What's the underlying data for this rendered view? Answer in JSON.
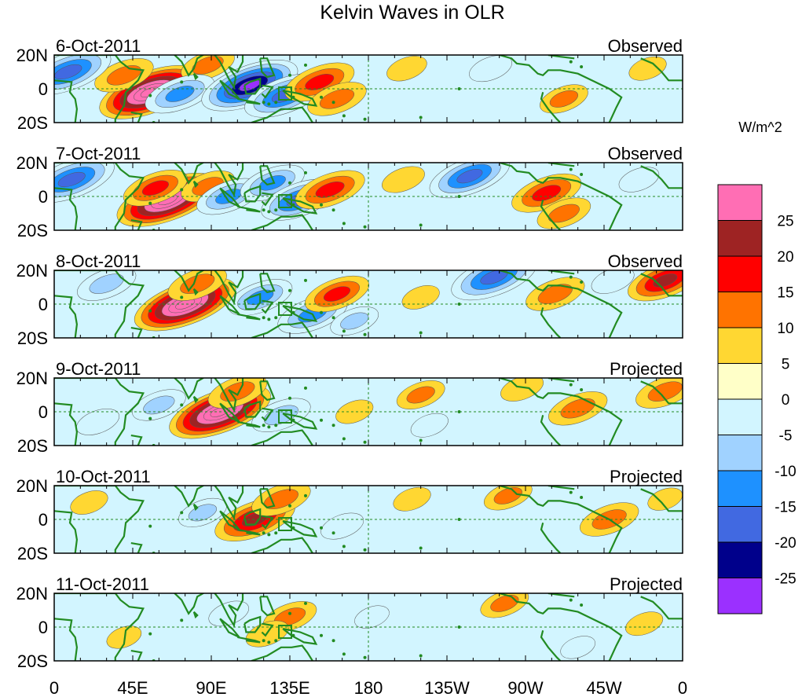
{
  "chart_data": {
    "type": "heatmap",
    "title": "Kelvin Waves in OLR",
    "units_label": "W/m^2",
    "y_tick_labels": [
      "20N",
      "0",
      "20S"
    ],
    "x_tick_labels": [
      "0",
      "45E",
      "90E",
      "135E",
      "180",
      "135W",
      "90W",
      "45W",
      "0"
    ],
    "x_range_deg": [
      0,
      360
    ],
    "y_range_deg": [
      -20,
      20
    ],
    "panels": [
      {
        "date": "6-Oct-2011",
        "kind": "Observed"
      },
      {
        "date": "7-Oct-2011",
        "kind": "Observed"
      },
      {
        "date": "8-Oct-2011",
        "kind": "Observed"
      },
      {
        "date": "9-Oct-2011",
        "kind": "Projected"
      },
      {
        "date": "10-Oct-2011",
        "kind": "Projected"
      },
      {
        "date": "11-Oct-2011",
        "kind": "Projected"
      }
    ],
    "colorbar": {
      "colors": [
        "#ff6eb4",
        "#9e2323",
        "#ff0000",
        "#ff7300",
        "#ffd732",
        "#ffffc8",
        "#d2f5ff",
        "#a0d2ff",
        "#1e91ff",
        "#4169e1",
        "#00008b",
        "#9b30ff"
      ],
      "labels": [
        "25",
        "20",
        "15",
        "10",
        "5",
        "0",
        "-5",
        "-10",
        "-15",
        "-20",
        "-25"
      ]
    },
    "features": [
      [
        {
          "lon": 55,
          "lat": -2,
          "v": 30
        },
        {
          "lon": 40,
          "lat": 8,
          "v": 14
        },
        {
          "lon": 88,
          "lat": 14,
          "v": 12
        },
        {
          "lon": 72,
          "lat": -3,
          "v": -18
        },
        {
          "lon": 100,
          "lat": 0,
          "v": -10
        },
        {
          "lon": 112,
          "lat": 2,
          "v": -28
        },
        {
          "lon": 132,
          "lat": -4,
          "v": -22
        },
        {
          "lon": 152,
          "lat": 4,
          "v": 18
        },
        {
          "lon": 162,
          "lat": -6,
          "v": 14
        },
        {
          "lon": 8,
          "lat": 10,
          "v": -24
        },
        {
          "lon": 202,
          "lat": 12,
          "v": 7
        },
        {
          "lon": 250,
          "lat": 12,
          "v": -8
        },
        {
          "lon": 292,
          "lat": -6,
          "v": 10
        },
        {
          "lon": 340,
          "lat": 12,
          "v": 6
        }
      ],
      [
        {
          "lon": 65,
          "lat": -2,
          "v": 30
        },
        {
          "lon": 58,
          "lat": 5,
          "v": 16
        },
        {
          "lon": 88,
          "lat": 6,
          "v": 12
        },
        {
          "lon": 100,
          "lat": 0,
          "v": -16
        },
        {
          "lon": 125,
          "lat": 8,
          "v": -16
        },
        {
          "lon": 140,
          "lat": -2,
          "v": -20
        },
        {
          "lon": 158,
          "lat": 4,
          "v": 18
        },
        {
          "lon": 10,
          "lat": 10,
          "v": -24
        },
        {
          "lon": 238,
          "lat": 12,
          "v": -22
        },
        {
          "lon": 200,
          "lat": 10,
          "v": 8
        },
        {
          "lon": 282,
          "lat": 2,
          "v": 18
        },
        {
          "lon": 292,
          "lat": -10,
          "v": 12
        },
        {
          "lon": 335,
          "lat": 10,
          "v": -7
        }
      ],
      [
        {
          "lon": 75,
          "lat": 0,
          "v": 30
        },
        {
          "lon": 82,
          "lat": 12,
          "v": 14
        },
        {
          "lon": 118,
          "lat": 4,
          "v": -16
        },
        {
          "lon": 148,
          "lat": -6,
          "v": -18
        },
        {
          "lon": 162,
          "lat": 6,
          "v": 16
        },
        {
          "lon": 30,
          "lat": 12,
          "v": -14
        },
        {
          "lon": 172,
          "lat": -10,
          "v": -10
        },
        {
          "lon": 252,
          "lat": 16,
          "v": -24
        },
        {
          "lon": 287,
          "lat": 6,
          "v": 14
        },
        {
          "lon": 350,
          "lat": 14,
          "v": 20
        },
        {
          "lon": 320,
          "lat": 14,
          "v": -8
        },
        {
          "lon": 210,
          "lat": 4,
          "v": 6
        }
      ],
      [
        {
          "lon": 95,
          "lat": 0,
          "v": 30
        },
        {
          "lon": 105,
          "lat": 12,
          "v": 14
        },
        {
          "lon": 60,
          "lat": 4,
          "v": -12
        },
        {
          "lon": 130,
          "lat": -2,
          "v": -14
        },
        {
          "lon": 172,
          "lat": 0,
          "v": 6
        },
        {
          "lon": 210,
          "lat": 10,
          "v": 10
        },
        {
          "lon": 268,
          "lat": 14,
          "v": 8
        },
        {
          "lon": 300,
          "lat": 2,
          "v": 14
        },
        {
          "lon": 350,
          "lat": 12,
          "v": 14
        },
        {
          "lon": 25,
          "lat": -6,
          "v": -8
        },
        {
          "lon": 215,
          "lat": -8,
          "v": -6
        }
      ],
      [
        {
          "lon": 115,
          "lat": 0,
          "v": 22
        },
        {
          "lon": 130,
          "lat": 12,
          "v": 14
        },
        {
          "lon": 85,
          "lat": 4,
          "v": -10
        },
        {
          "lon": 165,
          "lat": -4,
          "v": -8
        },
        {
          "lon": 260,
          "lat": 14,
          "v": 10
        },
        {
          "lon": 318,
          "lat": 0,
          "v": 14
        },
        {
          "lon": 205,
          "lat": 12,
          "v": 6
        },
        {
          "lon": 20,
          "lat": 10,
          "v": 6
        },
        {
          "lon": 350,
          "lat": 12,
          "v": 5
        }
      ],
      [
        {
          "lon": 135,
          "lat": 6,
          "v": 12
        },
        {
          "lon": 122,
          "lat": -4,
          "v": 8
        },
        {
          "lon": 100,
          "lat": 8,
          "v": -7
        },
        {
          "lon": 258,
          "lat": 14,
          "v": 10
        },
        {
          "lon": 338,
          "lat": 2,
          "v": 6
        },
        {
          "lon": 182,
          "lat": 6,
          "v": -5
        },
        {
          "lon": 40,
          "lat": -6,
          "v": 5
        },
        {
          "lon": 300,
          "lat": -12,
          "v": -5
        }
      ]
    ]
  }
}
